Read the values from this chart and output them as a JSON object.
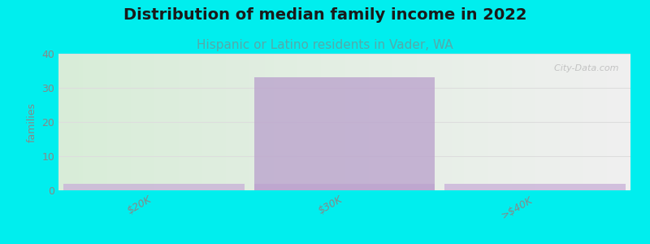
{
  "title": "Distribution of median family income in 2022",
  "subtitle": "Hispanic or Latino residents in Vader, WA",
  "categories": [
    "$20K",
    "$30K",
    ">$40K"
  ],
  "values": [
    2,
    33,
    2
  ],
  "bar_color": "#b9a0cc",
  "base_bar_color": "#c8b0d8",
  "base_bar_height": 2.0,
  "bg_color": "#00EEEE",
  "plot_bg_left": "#d8edd8",
  "plot_bg_right": "#f0f0f0",
  "ylabel": "families",
  "ylim": [
    0,
    40
  ],
  "yticks": [
    0,
    10,
    20,
    30,
    40
  ],
  "title_fontsize": 14,
  "subtitle_fontsize": 11,
  "subtitle_color": "#55aaaa",
  "watermark": "  City-Data.com",
  "watermark_color": "#bbbbbb",
  "grid_color": "#dddddd",
  "tick_color": "#888888",
  "bar_alpha": 0.75
}
